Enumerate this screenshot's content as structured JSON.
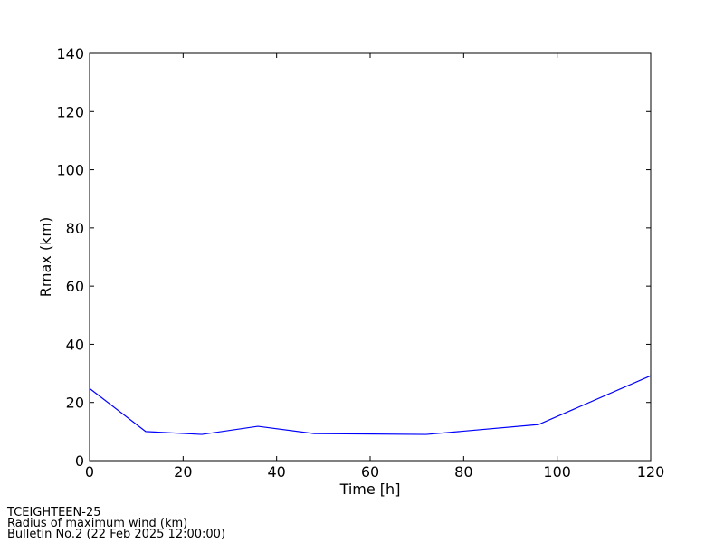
{
  "chart_data": {
    "type": "line",
    "xlabel": "Time [h]",
    "ylabel": "Rmax (km)",
    "x": [
      0,
      12,
      24,
      36,
      48,
      72,
      96,
      120
    ],
    "series": [
      {
        "name": "Rmax",
        "color": "#0000ff",
        "values": [
          24.8,
          10.0,
          9.0,
          11.8,
          9.3,
          9.0,
          12.4,
          29.2
        ]
      }
    ],
    "xlim": [
      0,
      120
    ],
    "xticks": [
      0,
      20,
      40,
      60,
      80,
      100,
      120
    ],
    "ylim": [
      0,
      140
    ],
    "yticks": [
      0,
      20,
      40,
      60,
      80,
      100,
      120,
      140
    ],
    "grid": false,
    "annotations": [
      "TCEIGHTEEN-25",
      "Radius of maximum wind (km)",
      "Bulletin No.2 (22 Feb 2025  12:00:00)"
    ]
  }
}
